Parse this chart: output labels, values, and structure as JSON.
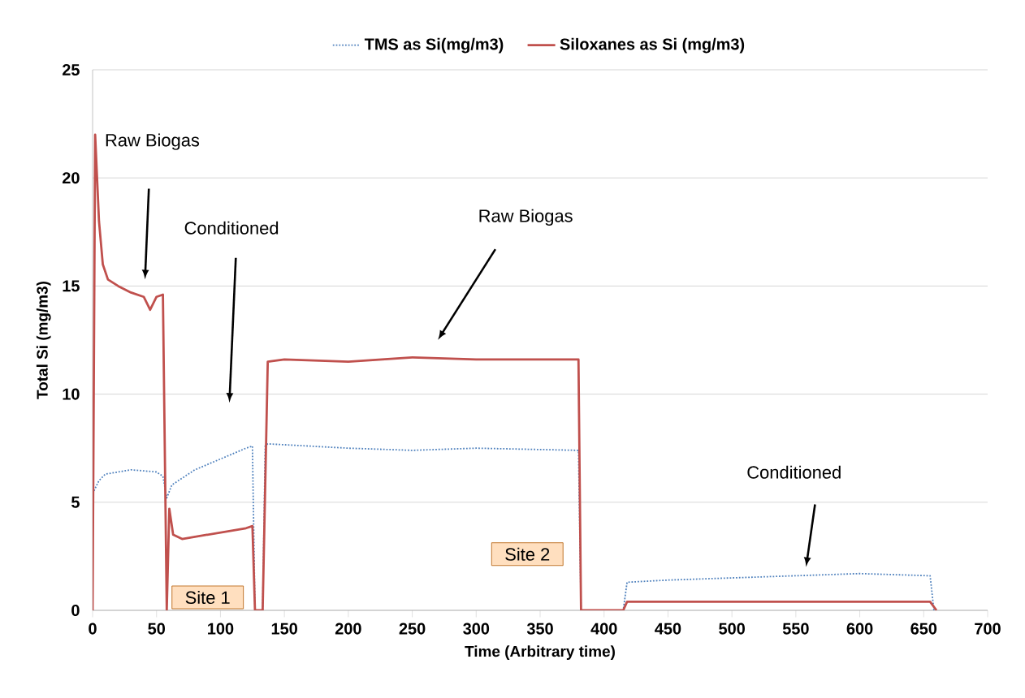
{
  "chart_data": {
    "type": "line",
    "xlabel": "Time (Arbitrary time)",
    "ylabel": "Total Si (mg/m3)",
    "xlim": [
      0,
      700
    ],
    "ylim": [
      0,
      25
    ],
    "xticks": [
      0,
      50,
      100,
      150,
      200,
      250,
      300,
      350,
      400,
      450,
      500,
      550,
      600,
      650,
      700
    ],
    "yticks": [
      0,
      5,
      10,
      15,
      20,
      25
    ],
    "grid": "y",
    "legend": "top",
    "series": [
      {
        "name": "TMS as Si(mg/m3)",
        "color": "#4f81bd",
        "line_style": "dotted",
        "x": [
          0,
          5,
          10,
          30,
          50,
          55,
          58,
          62,
          80,
          100,
          120,
          125,
          127,
          133,
          135,
          137,
          200,
          250,
          300,
          380,
          382,
          415,
          418,
          450,
          500,
          550,
          600,
          655,
          658
        ],
        "values": [
          5.4,
          6,
          6.3,
          6.5,
          6.4,
          6.2,
          5.2,
          5.8,
          6.5,
          7,
          7.5,
          7.6,
          0,
          0,
          7.6,
          7.7,
          7.5,
          7.4,
          7.5,
          7.4,
          0,
          0,
          1.3,
          1.4,
          1.5,
          1.6,
          1.7,
          1.6,
          0
        ]
      },
      {
        "name": "Siloxanes as Si (mg/m3)",
        "color": "#c0504d",
        "line_style": "solid",
        "x": [
          0,
          2,
          5,
          8,
          12,
          20,
          30,
          40,
          45,
          50,
          55,
          58,
          60,
          63,
          70,
          80,
          100,
          120,
          125,
          127,
          133,
          137,
          150,
          200,
          250,
          300,
          350,
          380,
          382,
          415,
          418,
          650,
          655,
          660
        ],
        "values": [
          0,
          22,
          18,
          16,
          15.3,
          15,
          14.7,
          14.5,
          13.9,
          14.5,
          14.6,
          0,
          4.7,
          3.5,
          3.3,
          3.4,
          3.6,
          3.8,
          3.9,
          0,
          0,
          11.5,
          11.6,
          11.5,
          11.7,
          11.6,
          11.6,
          11.6,
          0,
          0,
          0.4,
          0.4,
          0.4,
          0
        ]
      }
    ],
    "annotations": [
      "Raw Biogas",
      "Conditioned",
      "Raw Biogas",
      "Conditioned",
      "Site 1",
      "Site 2"
    ]
  }
}
